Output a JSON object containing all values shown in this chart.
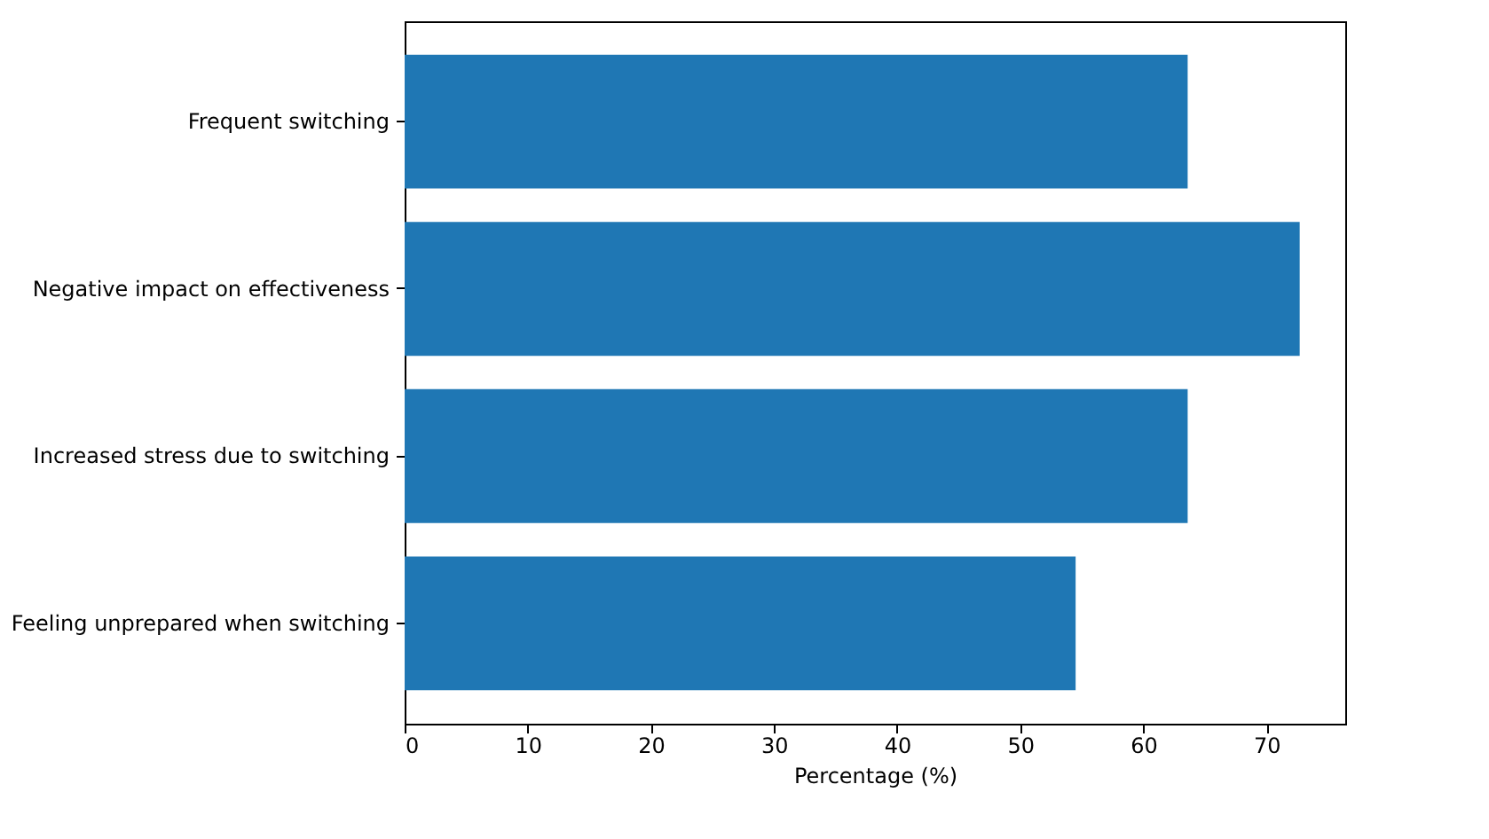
{
  "chart_data": {
    "type": "bar",
    "orientation": "horizontal",
    "xlabel": "Percentage (%)",
    "categories": [
      "Frequent switching",
      "Negative impact on effectiveness",
      "Increased stress due to switching",
      "Feeling unprepared when switching"
    ],
    "values": [
      63.6,
      72.7,
      63.6,
      54.5
    ],
    "color": "#1f77b4",
    "xlim": [
      0,
      76.4
    ],
    "xticks": [
      0,
      10,
      20,
      30,
      40,
      50,
      60,
      70
    ],
    "grid": false
  }
}
